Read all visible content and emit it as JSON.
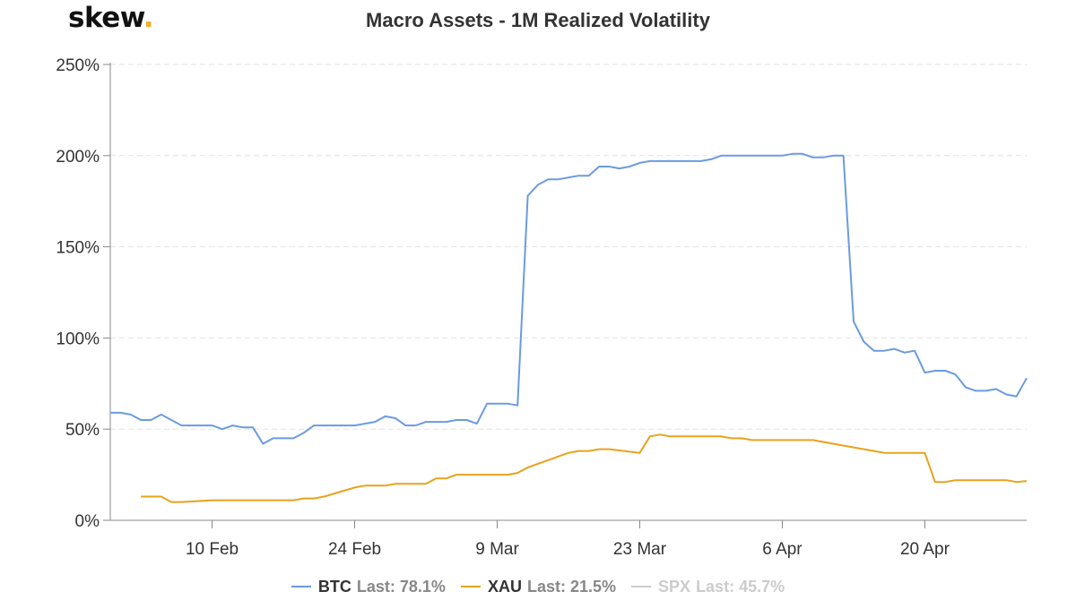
{
  "brand": {
    "name": "skew",
    "dot": "."
  },
  "chart_data": {
    "type": "line",
    "title": "Macro Assets - 1M Realized Volatility",
    "xlabel": "",
    "ylabel": "",
    "ylim": [
      0,
      250
    ],
    "yticks": [
      "0%",
      "50%",
      "100%",
      "150%",
      "200%",
      "250%"
    ],
    "xlim": [
      "2020-01-31",
      "2020-04-30"
    ],
    "xticks": [
      {
        "date": "2020-02-10",
        "label": "10 Feb"
      },
      {
        "date": "2020-02-24",
        "label": "24 Feb"
      },
      {
        "date": "2020-03-09",
        "label": "9 Mar"
      },
      {
        "date": "2020-03-23",
        "label": "23 Mar"
      },
      {
        "date": "2020-04-06",
        "label": "6 Apr"
      },
      {
        "date": "2020-04-20",
        "label": "20 Apr"
      }
    ],
    "grid": true,
    "legend_position": "bottom-center",
    "series": [
      {
        "name": "BTC",
        "legend_value": "Last: 78.1%",
        "color": "#6b9be0",
        "visible": true,
        "points": [
          [
            "2020-01-31",
            59
          ],
          [
            "2020-02-01",
            59
          ],
          [
            "2020-02-02",
            58
          ],
          [
            "2020-02-03",
            55
          ],
          [
            "2020-02-04",
            55
          ],
          [
            "2020-02-05",
            58
          ],
          [
            "2020-02-06",
            55
          ],
          [
            "2020-02-07",
            52
          ],
          [
            "2020-02-08",
            52
          ],
          [
            "2020-02-09",
            52
          ],
          [
            "2020-02-10",
            52
          ],
          [
            "2020-02-11",
            50
          ],
          [
            "2020-02-12",
            52
          ],
          [
            "2020-02-13",
            51
          ],
          [
            "2020-02-14",
            51
          ],
          [
            "2020-02-15",
            42
          ],
          [
            "2020-02-16",
            45
          ],
          [
            "2020-02-17",
            45
          ],
          [
            "2020-02-18",
            45
          ],
          [
            "2020-02-19",
            48
          ],
          [
            "2020-02-20",
            52
          ],
          [
            "2020-02-21",
            52
          ],
          [
            "2020-02-22",
            52
          ],
          [
            "2020-02-23",
            52
          ],
          [
            "2020-02-24",
            52
          ],
          [
            "2020-02-25",
            53
          ],
          [
            "2020-02-26",
            54
          ],
          [
            "2020-02-27",
            57
          ],
          [
            "2020-02-28",
            56
          ],
          [
            "2020-02-29",
            52
          ],
          [
            "2020-03-01",
            52
          ],
          [
            "2020-03-02",
            54
          ],
          [
            "2020-03-03",
            54
          ],
          [
            "2020-03-04",
            54
          ],
          [
            "2020-03-05",
            55
          ],
          [
            "2020-03-06",
            55
          ],
          [
            "2020-03-07",
            53
          ],
          [
            "2020-03-08",
            64
          ],
          [
            "2020-03-09",
            64
          ],
          [
            "2020-03-10",
            64
          ],
          [
            "2020-03-11",
            63
          ],
          [
            "2020-03-12",
            178
          ],
          [
            "2020-03-13",
            184
          ],
          [
            "2020-03-14",
            187
          ],
          [
            "2020-03-15",
            187
          ],
          [
            "2020-03-16",
            188
          ],
          [
            "2020-03-17",
            189
          ],
          [
            "2020-03-18",
            189
          ],
          [
            "2020-03-19",
            194
          ],
          [
            "2020-03-20",
            194
          ],
          [
            "2020-03-21",
            193
          ],
          [
            "2020-03-22",
            194
          ],
          [
            "2020-03-23",
            196
          ],
          [
            "2020-03-24",
            197
          ],
          [
            "2020-03-25",
            197
          ],
          [
            "2020-03-26",
            197
          ],
          [
            "2020-03-27",
            197
          ],
          [
            "2020-03-28",
            197
          ],
          [
            "2020-03-29",
            197
          ],
          [
            "2020-03-30",
            198
          ],
          [
            "2020-03-31",
            200
          ],
          [
            "2020-04-01",
            200
          ],
          [
            "2020-04-02",
            200
          ],
          [
            "2020-04-03",
            200
          ],
          [
            "2020-04-04",
            200
          ],
          [
            "2020-04-05",
            200
          ],
          [
            "2020-04-06",
            200
          ],
          [
            "2020-04-07",
            201
          ],
          [
            "2020-04-08",
            201
          ],
          [
            "2020-04-09",
            199
          ],
          [
            "2020-04-10",
            199
          ],
          [
            "2020-04-11",
            200
          ],
          [
            "2020-04-12",
            200
          ],
          [
            "2020-04-13",
            109
          ],
          [
            "2020-04-14",
            98
          ],
          [
            "2020-04-15",
            93
          ],
          [
            "2020-04-16",
            93
          ],
          [
            "2020-04-17",
            94
          ],
          [
            "2020-04-18",
            92
          ],
          [
            "2020-04-19",
            93
          ],
          [
            "2020-04-20",
            81
          ],
          [
            "2020-04-21",
            82
          ],
          [
            "2020-04-22",
            82
          ],
          [
            "2020-04-23",
            80
          ],
          [
            "2020-04-24",
            73
          ],
          [
            "2020-04-25",
            71
          ],
          [
            "2020-04-26",
            71
          ],
          [
            "2020-04-27",
            72
          ],
          [
            "2020-04-28",
            69
          ],
          [
            "2020-04-29",
            68
          ],
          [
            "2020-04-30",
            78
          ]
        ]
      },
      {
        "name": "XAU",
        "legend_value": "Last: 21.5%",
        "color": "#e8a21c",
        "visible": true,
        "points": [
          [
            "2020-02-03",
            13
          ],
          [
            "2020-02-04",
            13
          ],
          [
            "2020-02-05",
            13
          ],
          [
            "2020-02-06",
            10
          ],
          [
            "2020-02-07",
            10
          ],
          [
            "2020-02-10",
            11
          ],
          [
            "2020-02-11",
            11
          ],
          [
            "2020-02-12",
            11
          ],
          [
            "2020-02-13",
            11
          ],
          [
            "2020-02-14",
            11
          ],
          [
            "2020-02-17",
            11
          ],
          [
            "2020-02-18",
            11
          ],
          [
            "2020-02-19",
            12
          ],
          [
            "2020-02-20",
            12
          ],
          [
            "2020-02-21",
            13
          ],
          [
            "2020-02-24",
            18
          ],
          [
            "2020-02-25",
            19
          ],
          [
            "2020-02-26",
            19
          ],
          [
            "2020-02-27",
            19
          ],
          [
            "2020-02-28",
            20
          ],
          [
            "2020-03-02",
            20
          ],
          [
            "2020-03-03",
            23
          ],
          [
            "2020-03-04",
            23
          ],
          [
            "2020-03-05",
            25
          ],
          [
            "2020-03-06",
            25
          ],
          [
            "2020-03-09",
            25
          ],
          [
            "2020-03-10",
            25
          ],
          [
            "2020-03-11",
            26
          ],
          [
            "2020-03-12",
            29
          ],
          [
            "2020-03-13",
            31
          ],
          [
            "2020-03-16",
            37
          ],
          [
            "2020-03-17",
            38
          ],
          [
            "2020-03-18",
            38
          ],
          [
            "2020-03-19",
            39
          ],
          [
            "2020-03-20",
            39
          ],
          [
            "2020-03-23",
            37
          ],
          [
            "2020-03-24",
            46
          ],
          [
            "2020-03-25",
            47
          ],
          [
            "2020-03-26",
            46
          ],
          [
            "2020-03-27",
            46
          ],
          [
            "2020-03-30",
            46
          ],
          [
            "2020-03-31",
            46
          ],
          [
            "2020-04-01",
            45
          ],
          [
            "2020-04-02",
            45
          ],
          [
            "2020-04-03",
            44
          ],
          [
            "2020-04-06",
            44
          ],
          [
            "2020-04-07",
            44
          ],
          [
            "2020-04-08",
            44
          ],
          [
            "2020-04-09",
            44
          ],
          [
            "2020-04-13",
            40
          ],
          [
            "2020-04-14",
            39
          ],
          [
            "2020-04-15",
            38
          ],
          [
            "2020-04-16",
            37
          ],
          [
            "2020-04-17",
            37
          ],
          [
            "2020-04-20",
            37
          ],
          [
            "2020-04-21",
            21
          ],
          [
            "2020-04-22",
            21
          ],
          [
            "2020-04-23",
            22
          ],
          [
            "2020-04-24",
            22
          ],
          [
            "2020-04-27",
            22
          ],
          [
            "2020-04-28",
            22
          ],
          [
            "2020-04-29",
            21
          ],
          [
            "2020-04-30",
            21.5
          ]
        ]
      },
      {
        "name": "SPX",
        "legend_value": "Last: 45.7%",
        "color": "#cccccc",
        "visible": false,
        "points": []
      }
    ]
  }
}
